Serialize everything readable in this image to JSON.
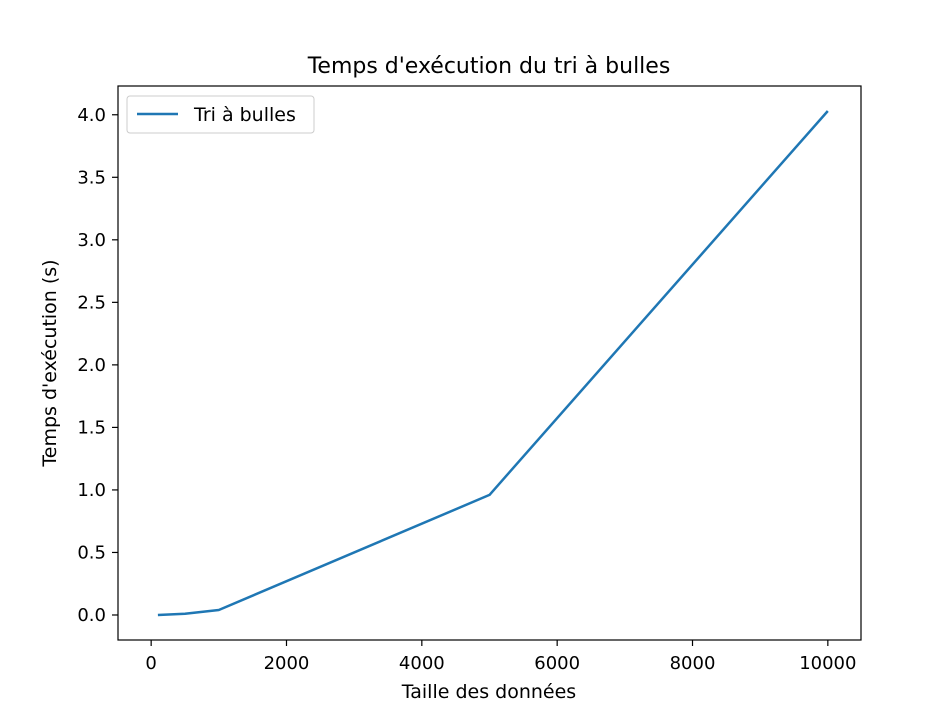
{
  "chart_data": {
    "type": "line",
    "title": "Temps d'exécution du tri à bulles",
    "xlabel": "Taille des données",
    "ylabel": "Temps d'exécution (s)",
    "xlim": [
      -490,
      10490
    ],
    "ylim": [
      -0.2,
      4.23
    ],
    "x_ticks": [
      0,
      2000,
      4000,
      6000,
      8000,
      10000
    ],
    "y_ticks": [
      0.0,
      0.5,
      1.0,
      1.5,
      2.0,
      2.5,
      3.0,
      3.5,
      4.0
    ],
    "x_tick_labels": [
      "0",
      "2000",
      "4000",
      "6000",
      "8000",
      "10000"
    ],
    "y_tick_labels": [
      "0.0",
      "0.5",
      "1.0",
      "1.5",
      "2.0",
      "2.5",
      "3.0",
      "3.5",
      "4.0"
    ],
    "grid": false,
    "legend_position": "upper-left",
    "series": [
      {
        "name": "Tri à bulles",
        "color": "#1f77b4",
        "x": [
          100,
          500,
          1000,
          5000,
          10000
        ],
        "y": [
          0.0,
          0.01,
          0.04,
          0.96,
          4.03
        ]
      }
    ]
  }
}
